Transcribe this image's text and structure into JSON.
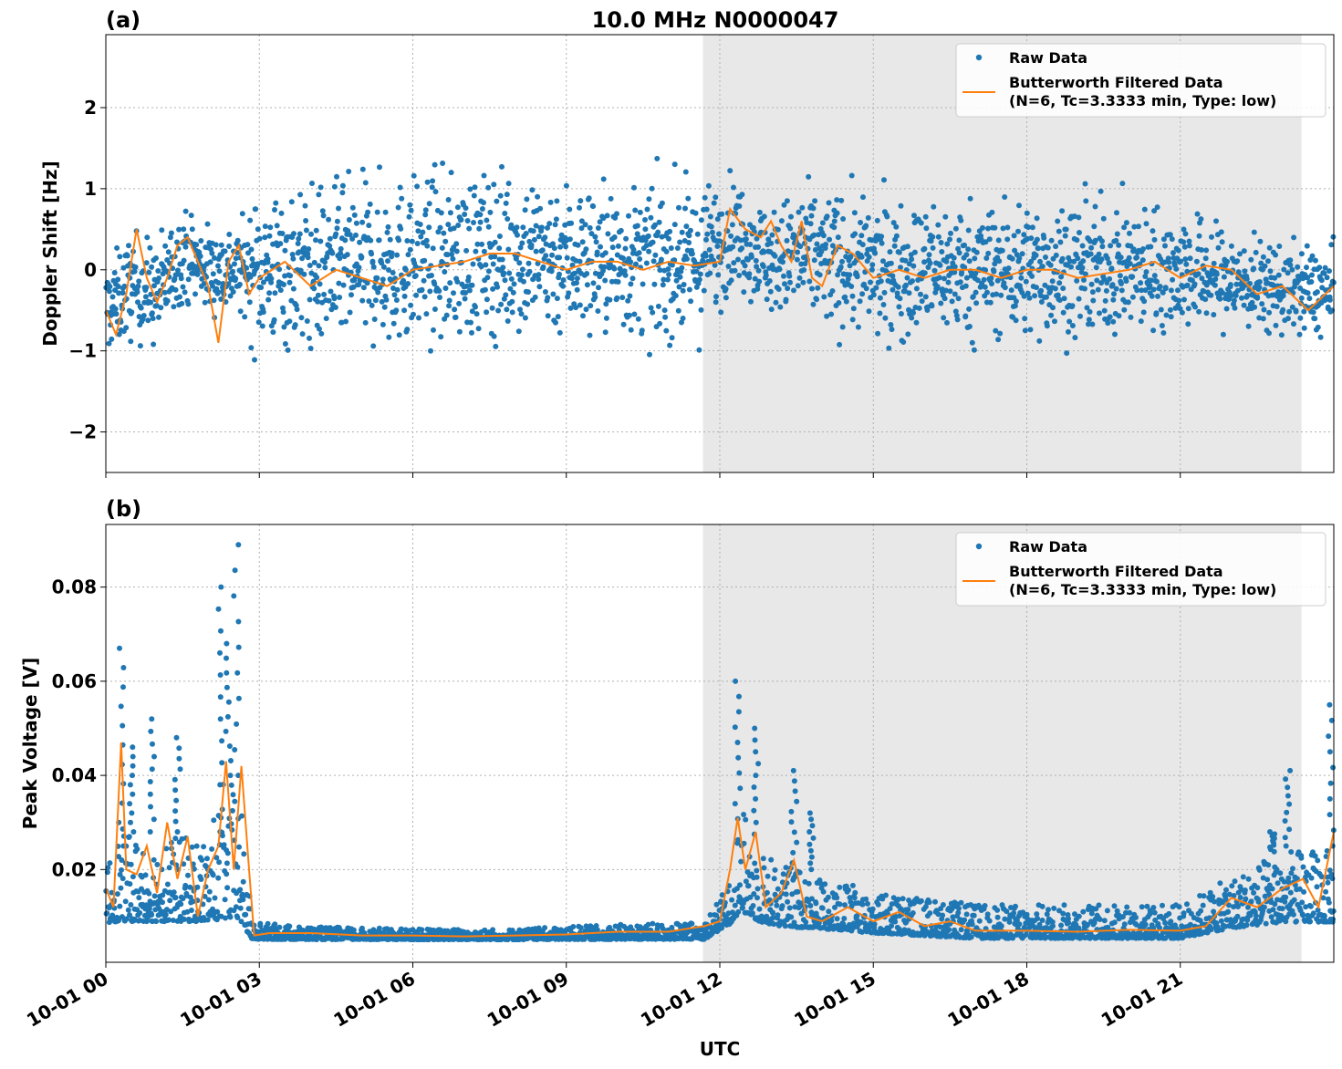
{
  "figure": {
    "title": "10.0 MHz N0000047",
    "xlabel": "UTC"
  },
  "colors": {
    "raw": "#1f77b4",
    "filtered": "#ff7f0e",
    "shade": "#e8e8e8",
    "grid": "#b0b0b0"
  },
  "chart_data": [
    {
      "type": "scatter",
      "panel_label": "(a)",
      "ylabel": "Doppler Shift [Hz]",
      "xlim_hours": [
        0,
        24.0
      ],
      "ylim": [
        -2.5,
        2.9
      ],
      "yticks": [
        -2,
        -1,
        0,
        1,
        2
      ],
      "ytick_labels": [
        "−2",
        "−1",
        "0",
        "1",
        "2"
      ],
      "xticks_hours": [
        0,
        3,
        6,
        9,
        12,
        15,
        18,
        21
      ],
      "xtick_labels": [
        "10-01 00",
        "10-01 03",
        "10-01 06",
        "10-01 09",
        "10-01 12",
        "10-01 15",
        "10-01 18",
        "10-01 21"
      ],
      "shaded_region_hours": [
        11.67,
        23.37
      ],
      "grid": true,
      "legend_position": "top-right",
      "series": [
        {
          "name": "Raw Data",
          "kind": "points",
          "band": {
            "x": [
              0,
              0.5,
              1,
              1.5,
              2,
              2.7,
              2.9,
              4,
              6,
              8,
              10,
              11.6,
              12.3,
              13,
              13.6,
              15,
              17,
              19,
              21,
              22.5,
              24
            ],
            "center": [
              -0.5,
              -0.2,
              -0.3,
              0.2,
              0.0,
              0.0,
              0.0,
              0.0,
              0.1,
              0.2,
              0.1,
              0.1,
              0.5,
              0.1,
              0.2,
              0.0,
              0.0,
              0.0,
              0.0,
              -0.2,
              -0.3
            ],
            "spread": [
              0.6,
              0.7,
              0.7,
              0.6,
              0.6,
              0.6,
              1.0,
              1.1,
              1.1,
              1.1,
              1.0,
              1.0,
              0.7,
              0.7,
              0.9,
              0.9,
              0.9,
              0.9,
              0.8,
              0.6,
              0.6
            ]
          }
        },
        {
          "name": "Butterworth Filtered Data\n(N=6, Tc=3.3333 min, Type: low)",
          "kind": "line",
          "x": [
            0,
            0.2,
            0.4,
            0.6,
            0.8,
            1.0,
            1.2,
            1.4,
            1.6,
            1.8,
            2.0,
            2.2,
            2.4,
            2.6,
            2.8,
            3.0,
            3.5,
            4,
            4.5,
            5,
            5.5,
            6,
            6.5,
            7,
            7.5,
            8,
            8.5,
            9,
            9.5,
            10,
            10.5,
            11,
            11.5,
            12,
            12.2,
            12.5,
            12.8,
            13.0,
            13.2,
            13.4,
            13.6,
            13.8,
            14,
            14.3,
            14.6,
            15,
            15.5,
            16,
            16.5,
            17,
            17.5,
            18,
            18.5,
            19,
            19.5,
            20,
            20.5,
            21,
            21.5,
            22,
            22.5,
            23,
            23.5,
            24
          ],
          "y": [
            -0.5,
            -0.8,
            -0.3,
            0.5,
            -0.1,
            -0.4,
            -0.1,
            0.3,
            0.4,
            0.1,
            -0.2,
            -0.9,
            0.1,
            0.3,
            -0.3,
            -0.1,
            0.1,
            -0.2,
            0.0,
            -0.1,
            -0.2,
            0.0,
            0.05,
            0.1,
            0.2,
            0.2,
            0.1,
            0.0,
            0.1,
            0.1,
            0.0,
            0.1,
            0.05,
            0.1,
            0.75,
            0.5,
            0.4,
            0.6,
            0.3,
            0.1,
            0.6,
            -0.1,
            -0.2,
            0.3,
            0.2,
            -0.1,
            0.0,
            -0.1,
            0.0,
            0.0,
            -0.1,
            0.0,
            0.0,
            -0.1,
            -0.05,
            0.0,
            0.1,
            -0.1,
            0.05,
            0.0,
            -0.3,
            -0.2,
            -0.5,
            -0.2
          ]
        }
      ]
    },
    {
      "type": "scatter",
      "panel_label": "(b)",
      "ylabel": "Peak Voltage [V]",
      "xlim_hours": [
        0,
        24.0
      ],
      "ylim": [
        0.0003,
        0.0933
      ],
      "yticks": [
        0.02,
        0.04,
        0.06,
        0.08
      ],
      "ytick_labels": [
        "0.02",
        "0.04",
        "0.06",
        "0.08"
      ],
      "xticks_hours": [
        0,
        3,
        6,
        9,
        12,
        15,
        18,
        21
      ],
      "xtick_labels": [
        "10-01 00",
        "10-01 03",
        "10-01 06",
        "10-01 09",
        "10-01 12",
        "10-01 15",
        "10-01 18",
        "10-01 21"
      ],
      "shaded_region_hours": [
        11.67,
        23.37
      ],
      "grid": true,
      "legend_position": "top-right",
      "series": [
        {
          "name": "Raw Data",
          "kind": "points",
          "band": {
            "x": [
              0,
              0.3,
              0.5,
              1,
              1.5,
              2,
              2.3,
              2.6,
              2.85,
              2.9,
              4,
              6,
              8,
              10,
              11.7,
              12.2,
              12.4,
              12.8,
              13.3,
              13.8,
              15,
              17,
              19,
              21,
              22,
              23,
              24
            ],
            "low": [
              0.008,
              0.008,
              0.008,
              0.008,
              0.008,
              0.008,
              0.008,
              0.008,
              0.005,
              0.005,
              0.005,
              0.005,
              0.005,
              0.005,
              0.005,
              0.008,
              0.01,
              0.008,
              0.007,
              0.007,
              0.006,
              0.005,
              0.005,
              0.005,
              0.007,
              0.008,
              0.008
            ],
            "high": [
              0.022,
              0.03,
              0.028,
              0.028,
              0.028,
              0.028,
              0.04,
              0.04,
              0.01,
              0.009,
              0.008,
              0.0075,
              0.0075,
              0.0085,
              0.009,
              0.018,
              0.035,
              0.025,
              0.022,
              0.02,
              0.016,
              0.013,
              0.013,
              0.013,
              0.019,
              0.025,
              0.025
            ]
          },
          "spikes": [
            {
              "x": 0.3,
              "y": 0.067
            },
            {
              "x": 0.5,
              "y": 0.046
            },
            {
              "x": 0.9,
              "y": 0.052
            },
            {
              "x": 1.4,
              "y": 0.048
            },
            {
              "x": 2.25,
              "y": 0.08
            },
            {
              "x": 2.55,
              "y": 0.089
            },
            {
              "x": 2.4,
              "y": 0.068
            },
            {
              "x": 12.35,
              "y": 0.06
            },
            {
              "x": 12.7,
              "y": 0.05
            },
            {
              "x": 13.45,
              "y": 0.041
            },
            {
              "x": 13.8,
              "y": 0.032
            },
            {
              "x": 23.1,
              "y": 0.041
            },
            {
              "x": 23.95,
              "y": 0.055
            },
            {
              "x": 22.8,
              "y": 0.028
            }
          ]
        },
        {
          "name": "Butterworth Filtered Data\n(N=6, Tc=3.3333 min, Type: low)",
          "kind": "line",
          "x": [
            0,
            0.15,
            0.3,
            0.4,
            0.6,
            0.8,
            1.0,
            1.2,
            1.4,
            1.6,
            1.8,
            2.0,
            2.2,
            2.35,
            2.5,
            2.65,
            2.8,
            2.9,
            3.2,
            4,
            5,
            6,
            7,
            8,
            9,
            10,
            11,
            11.7,
            12.0,
            12.2,
            12.35,
            12.5,
            12.7,
            12.9,
            13.2,
            13.45,
            13.7,
            14,
            14.5,
            15,
            15.5,
            16,
            16.5,
            17,
            18,
            19,
            20,
            21,
            21.5,
            22,
            22.5,
            23,
            23.4,
            23.7,
            24
          ],
          "y": [
            0.016,
            0.012,
            0.047,
            0.02,
            0.019,
            0.025,
            0.015,
            0.03,
            0.018,
            0.027,
            0.01,
            0.02,
            0.025,
            0.043,
            0.02,
            0.042,
            0.02,
            0.006,
            0.0065,
            0.0065,
            0.006,
            0.006,
            0.0058,
            0.006,
            0.0062,
            0.0068,
            0.0068,
            0.008,
            0.009,
            0.02,
            0.031,
            0.02,
            0.028,
            0.012,
            0.015,
            0.022,
            0.01,
            0.009,
            0.012,
            0.009,
            0.011,
            0.008,
            0.009,
            0.007,
            0.007,
            0.0068,
            0.0072,
            0.007,
            0.008,
            0.014,
            0.012,
            0.016,
            0.018,
            0.012,
            0.028
          ]
        }
      ]
    }
  ]
}
